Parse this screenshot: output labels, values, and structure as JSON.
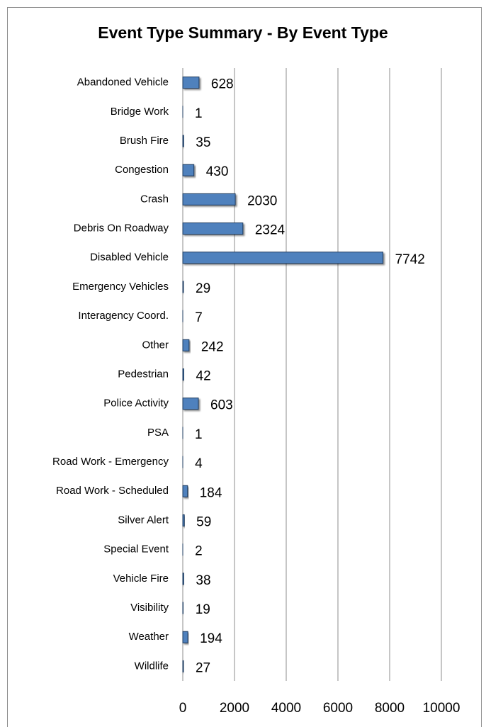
{
  "chart_data": {
    "type": "hbar",
    "title": "Event Type Summary - By Event Type",
    "categories": [
      "Abandoned Vehicle",
      "Bridge Work",
      "Brush Fire",
      "Congestion",
      "Crash",
      "Debris On Roadway",
      "Disabled Vehicle",
      "Emergency Vehicles",
      "Interagency Coord.",
      "Other",
      "Pedestrian",
      "Police Activity",
      "PSA",
      "Road Work - Emergency",
      "Road Work - Scheduled",
      "Silver Alert",
      "Special Event",
      "Vehicle Fire",
      "Visibility",
      "Weather",
      "Wildlife"
    ],
    "values": [
      628,
      1,
      35,
      430,
      2030,
      2324,
      7742,
      29,
      7,
      242,
      42,
      603,
      1,
      4,
      184,
      59,
      2,
      38,
      19,
      194,
      27
    ],
    "color": "#4f81bd",
    "xlim": [
      0,
      10000
    ],
    "xticks": [
      0,
      2000,
      4000,
      6000,
      8000,
      10000
    ],
    "grid": true
  }
}
